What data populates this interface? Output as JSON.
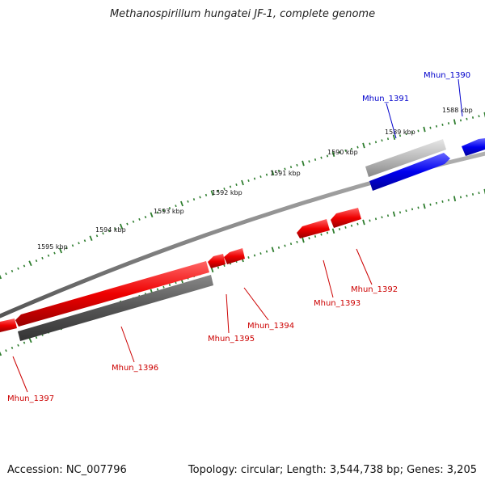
{
  "title": "Methanospirillum hungatei JF-1, complete genome",
  "accession": "Accession: NC_007796",
  "summary": "Topology: circular; Length: 3,544,738 bp; Genes: 3,205",
  "colors": {
    "forward": "#0000cc",
    "reverse": "#cc0000",
    "ticks": "#2e7d2e",
    "backbone": "#808080"
  },
  "kbp_labels": [
    "1588 kbp",
    "1589 kbp",
    "1590 kbp",
    "1591 kbp",
    "1592 kbp",
    "1593 kbp",
    "1594 kbp",
    "1595 kbp"
  ],
  "genes": [
    {
      "name": "Mhun_1390",
      "strand": "+"
    },
    {
      "name": "Mhun_1391",
      "strand": "+"
    },
    {
      "name": "Mhun_1392",
      "strand": "-"
    },
    {
      "name": "Mhun_1393",
      "strand": "-"
    },
    {
      "name": "Mhun_1394",
      "strand": "-"
    },
    {
      "name": "Mhun_1395",
      "strand": "-"
    },
    {
      "name": "Mhun_1396",
      "strand": "-"
    },
    {
      "name": "Mhun_1397",
      "strand": "-"
    }
  ]
}
